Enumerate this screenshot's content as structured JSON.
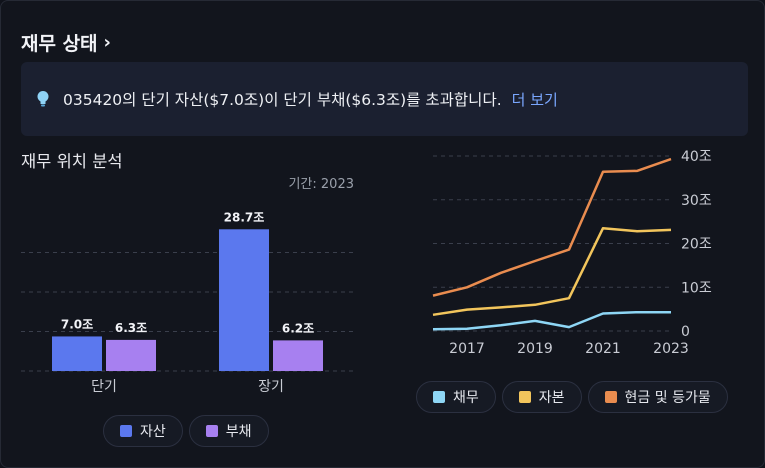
{
  "header": {
    "title": "재무 상태"
  },
  "banner": {
    "message": "035420의 단기 자산($7.0조)이 단기 부채($6.3조)를 초과합니다.",
    "link": "더 보기"
  },
  "position": {
    "title": "재무 위치 분석",
    "period": "기간: 2023"
  },
  "colors": {
    "assets": "#5b78ee",
    "liabilities": "#a780f0",
    "debt": "#8ed6f5",
    "equity": "#f2c55c",
    "cash": "#e98c4f"
  },
  "chart_data": [
    {
      "type": "bar",
      "categories": [
        "단기",
        "장기"
      ],
      "series": [
        {
          "name": "자산",
          "values": [
            7.0,
            28.7
          ],
          "labels": [
            "7.0조",
            "28.7조"
          ]
        },
        {
          "name": "부채",
          "values": [
            6.3,
            6.2
          ],
          "labels": [
            "6.3조",
            "6.2조"
          ]
        }
      ],
      "ylim": [
        0,
        32
      ],
      "grid": true,
      "legend": "bottom"
    },
    {
      "type": "line",
      "x": [
        2016,
        2017,
        2018,
        2019,
        2020,
        2021,
        2022,
        2023
      ],
      "x_ticks": [
        "2017",
        "2019",
        "2021",
        "2023"
      ],
      "y_ticks": [
        "0",
        "10조",
        "20조",
        "30조",
        "40조"
      ],
      "ylim": [
        0,
        40
      ],
      "series": [
        {
          "name": "채무",
          "values": [
            0.4,
            0.5,
            1.3,
            2.3,
            0.9,
            4.0,
            4.3,
            4.3
          ]
        },
        {
          "name": "자본",
          "values": [
            3.7,
            4.9,
            5.4,
            6.0,
            7.5,
            23.5,
            22.8,
            23.1
          ]
        },
        {
          "name": "현금 및 등가물",
          "values": [
            8.1,
            10.0,
            13.3,
            16.0,
            18.6,
            36.4,
            36.6,
            39.3
          ]
        }
      ],
      "grid": true,
      "legend": "bottom"
    }
  ]
}
